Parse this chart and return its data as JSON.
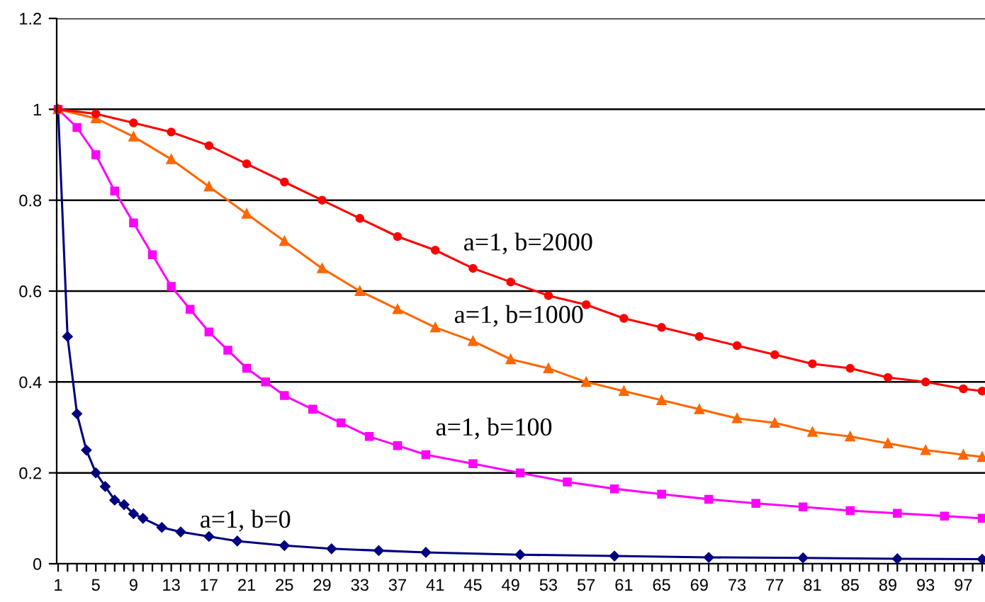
{
  "chart_data": {
    "type": "line",
    "grid": "y",
    "legend": false,
    "line_style": "solid",
    "xlim": [
      0.85,
      99.3
    ],
    "ylim": [
      0,
      1.2
    ],
    "yticks": [
      0,
      0.2,
      0.4,
      0.6,
      0.8,
      1,
      1.2
    ],
    "xticks": [
      1,
      {
        "value": 2,
        "label": null
      },
      {
        "value": 3,
        "label": null
      },
      {
        "value": 4,
        "label": null
      },
      5,
      {
        "value": 6,
        "label": null
      },
      {
        "value": 7,
        "label": null
      },
      {
        "value": 8,
        "label": null
      },
      9,
      {
        "value": 10,
        "label": null
      },
      {
        "value": 11,
        "label": null
      },
      {
        "value": 12,
        "label": null
      },
      13,
      {
        "value": 14,
        "label": null
      },
      {
        "value": 15,
        "label": null
      },
      {
        "value": 16,
        "label": null
      },
      17,
      {
        "value": 18,
        "label": null
      },
      {
        "value": 19,
        "label": null
      },
      {
        "value": 20,
        "label": null
      },
      21,
      {
        "value": 22,
        "label": null
      },
      {
        "value": 23,
        "label": null
      },
      {
        "value": 24,
        "label": null
      },
      25,
      {
        "value": 26,
        "label": null
      },
      {
        "value": 27,
        "label": null
      },
      {
        "value": 28,
        "label": null
      },
      29,
      {
        "value": 30,
        "label": null
      },
      {
        "value": 31,
        "label": null
      },
      {
        "value": 32,
        "label": null
      },
      33,
      {
        "value": 34,
        "label": null
      },
      {
        "value": 35,
        "label": null
      },
      {
        "value": 36,
        "label": null
      },
      37,
      {
        "value": 38,
        "label": null
      },
      {
        "value": 39,
        "label": null
      },
      {
        "value": 40,
        "label": null
      },
      41,
      {
        "value": 42,
        "label": null
      },
      {
        "value": 43,
        "label": null
      },
      {
        "value": 44,
        "label": null
      },
      45,
      {
        "value": 46,
        "label": null
      },
      {
        "value": 47,
        "label": null
      },
      {
        "value": 48,
        "label": null
      },
      49,
      {
        "value": 50,
        "label": null
      },
      {
        "value": 51,
        "label": null
      },
      {
        "value": 52,
        "label": null
      },
      53,
      {
        "value": 54,
        "label": null
      },
      {
        "value": 55,
        "label": null
      },
      {
        "value": 56,
        "label": null
      },
      57,
      {
        "value": 58,
        "label": null
      },
      {
        "value": 59,
        "label": null
      },
      {
        "value": 60,
        "label": null
      },
      61,
      {
        "value": 62,
        "label": null
      },
      {
        "value": 63,
        "label": null
      },
      {
        "value": 64,
        "label": null
      },
      65,
      {
        "value": 66,
        "label": null
      },
      {
        "value": 67,
        "label": null
      },
      {
        "value": 68,
        "label": null
      },
      69,
      {
        "value": 70,
        "label": null
      },
      {
        "value": 71,
        "label": null
      },
      {
        "value": 72,
        "label": null
      },
      73,
      {
        "value": 74,
        "label": null
      },
      {
        "value": 75,
        "label": null
      },
      {
        "value": 76,
        "label": null
      },
      77,
      {
        "value": 78,
        "label": null
      },
      {
        "value": 79,
        "label": null
      },
      {
        "value": 80,
        "label": null
      },
      81,
      {
        "value": 82,
        "label": null
      },
      {
        "value": 83,
        "label": null
      },
      {
        "value": 84,
        "label": null
      },
      85,
      {
        "value": 86,
        "label": null
      },
      {
        "value": 87,
        "label": null
      },
      {
        "value": 88,
        "label": null
      },
      89,
      {
        "value": 90,
        "label": null
      },
      {
        "value": 91,
        "label": null
      },
      {
        "value": 92,
        "label": null
      },
      93,
      {
        "value": 94,
        "label": null
      },
      {
        "value": 95,
        "label": null
      },
      {
        "value": 96,
        "label": null
      },
      97,
      {
        "value": 98,
        "label": null
      },
      {
        "value": 99,
        "label": null
      }
    ],
    "series": [
      {
        "name": "a=1, b=0",
        "color": "#000080",
        "marker": "diamond",
        "x": [
          1,
          2,
          3,
          4,
          5,
          6,
          7,
          8,
          9,
          10,
          12,
          14,
          17,
          20,
          25,
          30,
          35,
          40,
          50,
          60,
          70,
          80,
          90,
          99
        ],
        "values": [
          1,
          0.5,
          0.33,
          0.25,
          0.2,
          0.17,
          0.14,
          0.13,
          0.11,
          0.1,
          0.08,
          0.07,
          0.06,
          0.05,
          0.04,
          0.033,
          0.029,
          0.025,
          0.02,
          0.017,
          0.014,
          0.013,
          0.011,
          0.01
        ]
      },
      {
        "name": "a=1, b=100",
        "color": "#ff00ff",
        "marker": "square",
        "x": [
          1,
          3,
          5,
          7,
          9,
          11,
          13,
          15,
          17,
          19,
          21,
          23,
          25,
          28,
          31,
          34,
          37,
          40,
          45,
          50,
          55,
          60,
          65,
          70,
          75,
          80,
          85,
          90,
          95,
          99
        ],
        "values": [
          1,
          0.96,
          0.9,
          0.82,
          0.75,
          0.68,
          0.61,
          0.56,
          0.51,
          0.47,
          0.43,
          0.4,
          0.37,
          0.34,
          0.31,
          0.28,
          0.26,
          0.24,
          0.22,
          0.2,
          0.18,
          0.165,
          0.153,
          0.142,
          0.133,
          0.125,
          0.117,
          0.111,
          0.105,
          0.1
        ]
      },
      {
        "name": "a=1, b=1000",
        "color": "#ff6600",
        "marker": "triangle",
        "x": [
          1,
          5,
          9,
          13,
          17,
          21,
          25,
          29,
          33,
          37,
          41,
          45,
          49,
          53,
          57,
          61,
          65,
          69,
          73,
          77,
          81,
          85,
          89,
          93,
          97,
          99
        ],
        "values": [
          1,
          0.98,
          0.94,
          0.89,
          0.83,
          0.77,
          0.71,
          0.65,
          0.6,
          0.56,
          0.52,
          0.49,
          0.45,
          0.43,
          0.4,
          0.38,
          0.36,
          0.34,
          0.32,
          0.31,
          0.29,
          0.28,
          0.265,
          0.25,
          0.24,
          0.235
        ]
      },
      {
        "name": "a=1, b=2000",
        "color": "#ff0000",
        "marker": "circle",
        "x": [
          1,
          5,
          9,
          13,
          17,
          21,
          25,
          29,
          33,
          37,
          41,
          45,
          49,
          53,
          57,
          61,
          65,
          69,
          73,
          77,
          81,
          85,
          89,
          93,
          97,
          99
        ],
        "values": [
          1,
          0.99,
          0.97,
          0.95,
          0.92,
          0.88,
          0.84,
          0.8,
          0.76,
          0.72,
          0.69,
          0.65,
          0.62,
          0.59,
          0.57,
          0.54,
          0.52,
          0.5,
          0.48,
          0.46,
          0.44,
          0.43,
          0.41,
          0.4,
          0.385,
          0.38
        ]
      }
    ]
  }
}
